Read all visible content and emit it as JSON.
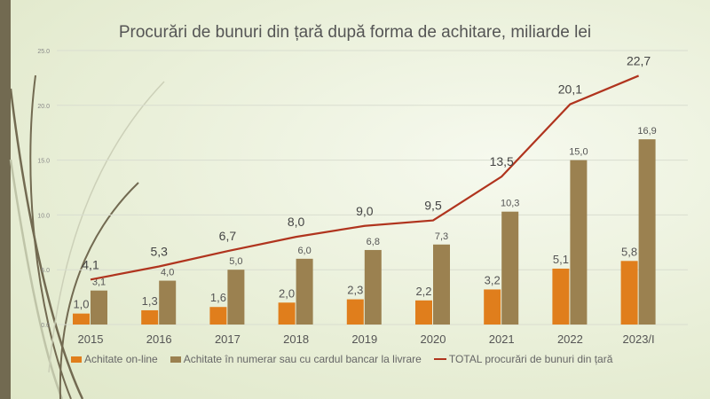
{
  "title": "Procurări de bunuri din țară după forma de achitare, miliarde lei",
  "colors": {
    "online": "#e07e1c",
    "cash": "#9b8150",
    "total": "#b0341e"
  },
  "chart_data": {
    "type": "bar",
    "title": "Procurări de bunuri din țară după forma de achitare, miliarde lei",
    "categories": [
      "2015",
      "2016",
      "2017",
      "2018",
      "2019",
      "2020",
      "2021",
      "2022",
      "2023/I"
    ],
    "yticks": [
      "0.0",
      "5.0",
      "10.0",
      "15.0",
      "20.0",
      "25.0"
    ],
    "ylim": [
      0,
      25
    ],
    "grid": true,
    "legend_position": "bottom",
    "series": [
      {
        "name": "Achitate on-line",
        "type": "bar",
        "values": [
          1.0,
          1.3,
          1.6,
          2.0,
          2.3,
          2.2,
          3.2,
          5.1,
          5.8
        ],
        "labels": [
          "1,0",
          "1,3",
          "1,6",
          "2,0",
          "2,3",
          "2,2",
          "3,2",
          "5,1",
          "5,8"
        ]
      },
      {
        "name": "Achitate în numerar sau cu cardul bancar la livrare",
        "type": "bar",
        "values": [
          3.1,
          4.0,
          5.0,
          6.0,
          6.8,
          7.3,
          10.3,
          15.0,
          16.9
        ],
        "labels": [
          "3,1",
          "4,0",
          "5,0",
          "6,0",
          "6,8",
          "7,3",
          "10,3",
          "15,0",
          "16,9"
        ]
      },
      {
        "name": "TOTAL procurări de bunuri din țară",
        "type": "line",
        "values": [
          4.1,
          5.3,
          6.7,
          8.0,
          9.0,
          9.5,
          13.5,
          20.1,
          22.7
        ],
        "labels": [
          "4,1",
          "5,3",
          "6,7",
          "8,0",
          "9,0",
          "9,5",
          "13,5",
          "20,1",
          "22,7"
        ]
      }
    ]
  }
}
